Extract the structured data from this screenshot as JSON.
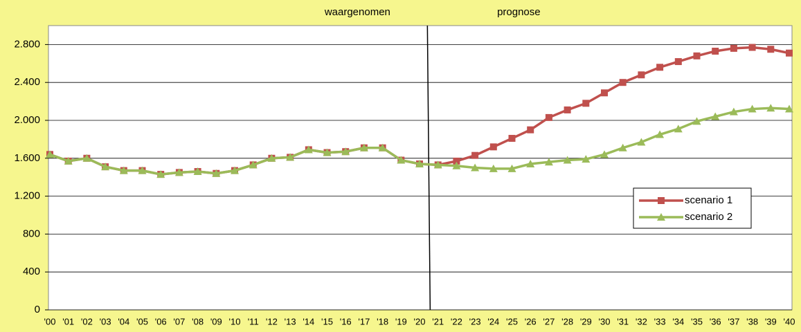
{
  "chart_data": {
    "type": "line",
    "annotations": [
      "waargenomen",
      "prognose"
    ],
    "categories": [
      "'00",
      "'01",
      "'02",
      "'03",
      "'04",
      "'05",
      "'06",
      "'07",
      "'08",
      "'09",
      "'10",
      "'11",
      "'12",
      "'13",
      "'14",
      "'15",
      "'16",
      "'17",
      "'18",
      "'19",
      "'20",
      "'21",
      "'22",
      "'23",
      "'24",
      "'25",
      "'26",
      "'27",
      "'28",
      "'29",
      "'30",
      "'31",
      "'32",
      "'33",
      "'34",
      "'35",
      "'36",
      "'37",
      "'38",
      "'39",
      "'40"
    ],
    "series": [
      {
        "name": "scenario 1",
        "color": "#c0504d",
        "marker": "square",
        "values": [
          1640,
          1570,
          1600,
          1510,
          1470,
          1470,
          1430,
          1450,
          1460,
          1440,
          1470,
          1530,
          1600,
          1610,
          1690,
          1660,
          1670,
          1710,
          1710,
          1580,
          1540,
          1530,
          1570,
          1630,
          1720,
          1810,
          1900,
          2030,
          2110,
          2180,
          2290,
          2400,
          2480,
          2560,
          2620,
          2680,
          2730,
          2760,
          2770,
          2750,
          2710
        ]
      },
      {
        "name": "scenario 2",
        "color": "#9bbb59",
        "marker": "triangle",
        "values": [
          1640,
          1570,
          1600,
          1510,
          1470,
          1470,
          1430,
          1450,
          1460,
          1440,
          1470,
          1530,
          1600,
          1610,
          1690,
          1660,
          1670,
          1710,
          1710,
          1580,
          1540,
          1530,
          1520,
          1500,
          1490,
          1490,
          1540,
          1560,
          1580,
          1590,
          1640,
          1710,
          1770,
          1850,
          1910,
          1990,
          2040,
          2090,
          2120,
          2130,
          2120
        ]
      }
    ],
    "ylim": [
      0,
      3000
    ],
    "yticks": [
      0,
      400,
      800,
      {
        "value": 1200,
        "label": "1.200"
      },
      {
        "value": 1600,
        "label": "1.600"
      },
      {
        "value": 2000,
        "label": "2.000"
      },
      {
        "value": 2400,
        "label": "2.400"
      },
      {
        "value": 2800,
        "label": "2.800"
      }
    ],
    "grid": true,
    "legend": "right"
  }
}
